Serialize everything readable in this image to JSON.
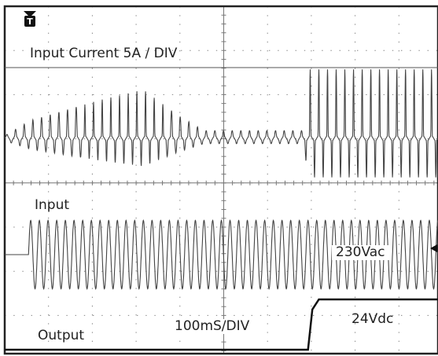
{
  "chart_data": {
    "type": "line",
    "title": "",
    "grid": true,
    "labels": {
      "current": "Input Current 5A / DIV",
      "input": "Input",
      "input_voltage": "230Vac",
      "timebase": "100mS/DIV",
      "output_voltage": "24Vdc",
      "output": "Output"
    },
    "divisions": {
      "x": 10,
      "y": 8
    },
    "x": {
      "unit": "ms",
      "per_div": 100,
      "range": [
        0,
        1000
      ]
    },
    "series": [
      {
        "key": "input_current",
        "channel": "current",
        "amplitude_A": [
          {
            "t": 0,
            "peak": 0.0
          },
          {
            "t": 60,
            "peak": 1.5
          },
          {
            "t": 220,
            "peak": 3.5
          },
          {
            "t": 320,
            "peak": 4.5
          },
          {
            "t": 400,
            "peak": 2.0
          },
          {
            "t": 460,
            "peak": 0.5
          },
          {
            "t": 690,
            "peak": 0.5
          },
          {
            "t": 700,
            "peak": 6.5
          },
          {
            "t": 1000,
            "peak": 6.5
          }
        ]
      },
      {
        "key": "input_voltage",
        "channel": "input",
        "frequency_hz": 50,
        "start_ms": 55,
        "amplitude_div": 1.25
      },
      {
        "key": "output_voltage",
        "channel": "output",
        "points": [
          {
            "t": 0,
            "v": 0
          },
          {
            "t": 700,
            "v": 0
          },
          {
            "t": 710,
            "v": 0.8
          },
          {
            "t": 725,
            "v": 1.0
          },
          {
            "t": 1000,
            "v": 1.0
          }
        ]
      }
    ],
    "trigger_marker": "T",
    "ground_marker": "arrow-left",
    "colors": {
      "trace": "#444444",
      "grid": "#777777",
      "frame": "#222222",
      "background": "#ffffff"
    }
  }
}
